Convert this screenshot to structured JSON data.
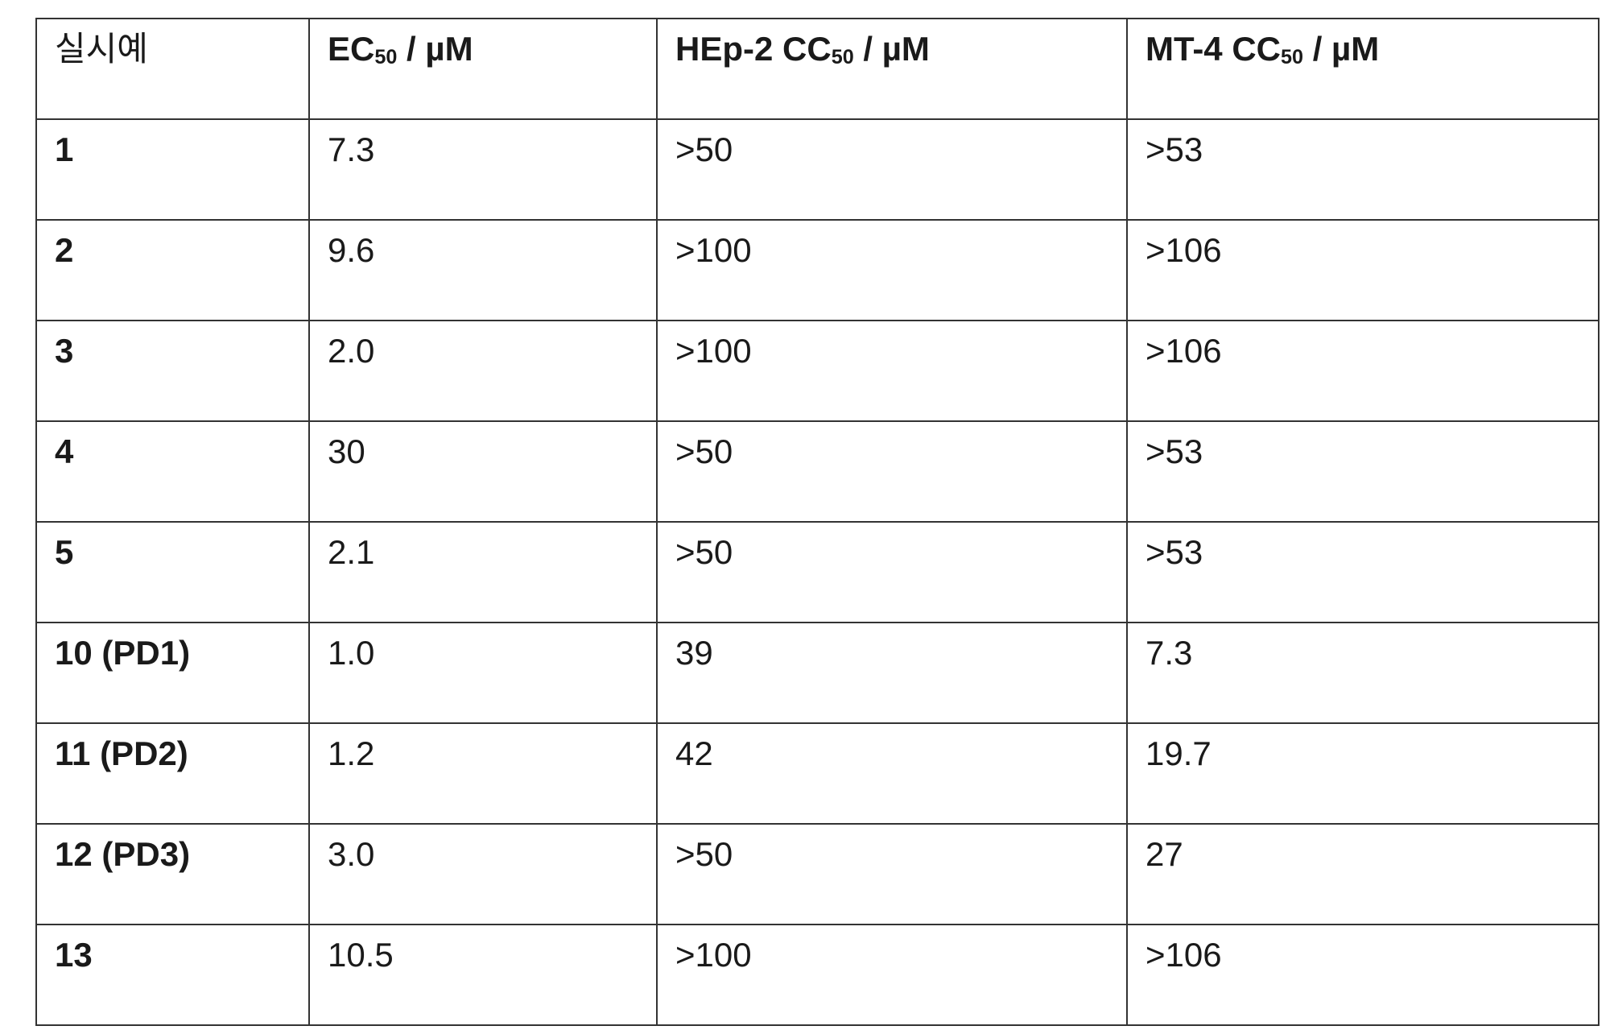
{
  "table": {
    "headers": [
      {
        "main": "실시예",
        "sub": "",
        "unit": ""
      },
      {
        "main": "EC",
        "sub": "50",
        "unit": " / µM"
      },
      {
        "main": "HEp-2 CC",
        "sub": "50",
        "unit": " / µM"
      },
      {
        "main": "MT-4 CC",
        "sub": "50",
        "unit": " / µM"
      }
    ],
    "rows": [
      [
        "1",
        "7.3",
        ">50",
        ">53"
      ],
      [
        "2",
        "9.6",
        ">100",
        ">106"
      ],
      [
        "3",
        "2.0",
        ">100",
        ">106"
      ],
      [
        "4",
        "30",
        ">50",
        ">53"
      ],
      [
        "5",
        "2.1",
        ">50",
        ">53"
      ],
      [
        "10 (PD1)",
        "1.0",
        "39",
        "7.3"
      ],
      [
        "11 (PD2)",
        "1.2",
        "42",
        "19.7"
      ],
      [
        "12 (PD3)",
        "3.0",
        ">50",
        "27"
      ],
      [
        "13",
        "10.5",
        ">100",
        ">106"
      ]
    ]
  }
}
